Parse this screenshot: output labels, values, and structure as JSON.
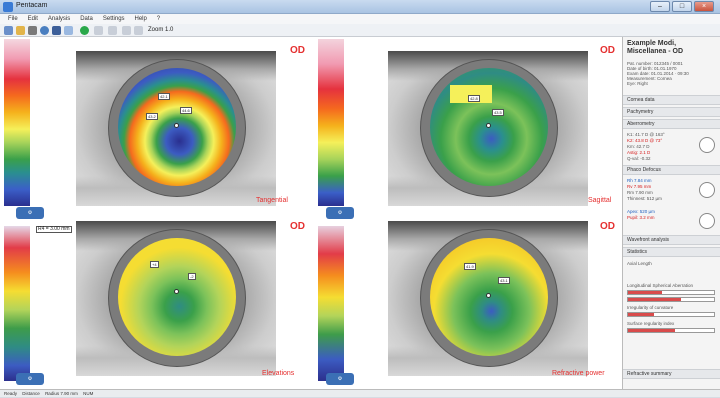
{
  "window": {
    "title": "Pentacam"
  },
  "menu": [
    "File",
    "Edit",
    "Analysis",
    "Data",
    "Settings",
    "Help",
    "?"
  ],
  "toolbar": {
    "zoom_label": "Zoom 1.0"
  },
  "maps": [
    {
      "name": "Tangential",
      "eye": "OD"
    },
    {
      "name": "Sagittal",
      "eye": "OD"
    },
    {
      "name": "Elevations",
      "eye": "OD"
    },
    {
      "name": "Refractive power",
      "eye": "OD"
    }
  ],
  "scales": {
    "top_left_radius": "R4 = 3.00 mm"
  },
  "panel": {
    "title_line1": "Example Modi,",
    "title_line2": "Miscellanea - OD",
    "patient_lines": [
      "Pat. number: 012345 / 0001",
      "Date of birth: 01.01.1970",
      "Exam date: 01.01.2014 · 09:30",
      "Measurement: Cornea",
      "Eye: Right"
    ],
    "sections": [
      "Cornea data",
      "Pachymetry",
      "Aberrometry",
      "Phaco Defocus",
      "Wavefront analysis",
      "Statistics",
      "Refractive summary"
    ],
    "values": [
      "K1: 41.7 D @ 163°",
      "K2: 43.8 D @ 73°",
      "Km: 42.7 D",
      "Astig: 2.1 D",
      "Q-val: -0.32",
      "Rh 7.84 mm",
      "Rv 7.95 mm",
      "Rm 7.90 mm",
      "Thinnest: 512 µm",
      "Apex: 520 µm",
      "Pupil: 3.2 mm",
      "Axial Length",
      "Longitudinal Spherical Aberration",
      "Irregularity of curvature",
      "Surface regularity index"
    ]
  },
  "status": {
    "left": "Ready",
    "mid": "Distance",
    "mid2": "Radius 7.90 mm",
    "right": "NUM"
  },
  "colors": {
    "accent": "#e53030",
    "chrome": "#a9c3e3"
  }
}
